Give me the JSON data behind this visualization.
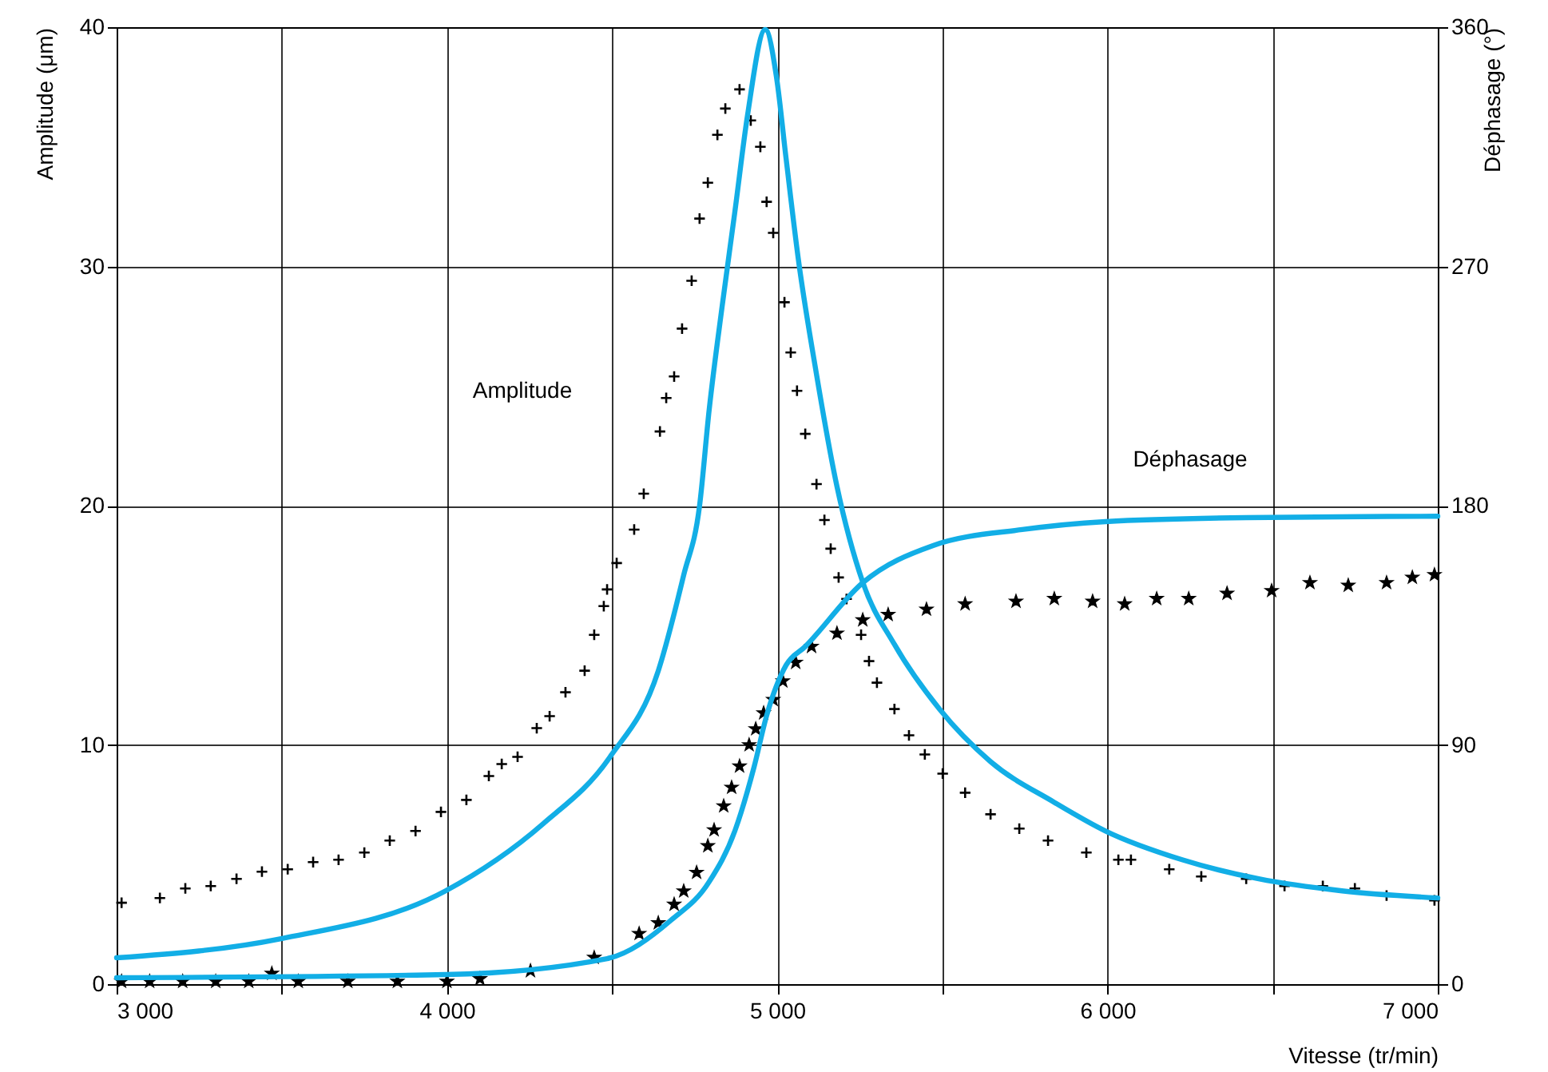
{
  "chart_data": {
    "type": "line",
    "xlabel": "Vitesse (tr/min)",
    "ylabel": "Amplitude (μm)",
    "y2label": "Déphasage (°)",
    "xlim": [
      3000,
      7000
    ],
    "xticks": [
      {
        "value": 3000,
        "label": "3 000"
      },
      {
        "value": 3500,
        "label": null
      },
      {
        "value": 4000,
        "label": "4 000"
      },
      {
        "value": 4500,
        "label": null
      },
      {
        "value": 5000,
        "label": "5 000"
      },
      {
        "value": 5500,
        "label": null
      },
      {
        "value": 6000,
        "label": "6 000"
      },
      {
        "value": 6500,
        "label": null
      },
      {
        "value": 7000,
        "label": "7 000"
      }
    ],
    "ylim": [
      0,
      40
    ],
    "yticks": [
      0,
      10,
      20,
      30,
      40
    ],
    "y2lim": [
      0,
      360
    ],
    "y2ticks": [
      0,
      90,
      180,
      270,
      360
    ],
    "grid": true,
    "annotations": [
      "Amplitude",
      "Déphasage"
    ],
    "series": [
      {
        "type": "scatter",
        "marker": "cross",
        "color": "#000000",
        "x": [
          3015,
          3131,
          3208,
          3285,
          3363,
          3440,
          3518,
          3595,
          3672,
          3750,
          3827,
          3905,
          3982,
          4059,
          4127,
          4166,
          4214,
          4272,
          4311,
          4359,
          4417,
          4446,
          4475,
          4485,
          4514,
          4567,
          4596,
          4645,
          4664,
          4688,
          4712,
          4741,
          4765,
          4790,
          4819,
          4843,
          4886,
          4920,
          4949,
          4968,
          4988,
          5022,
          5041,
          5060,
          5085,
          5119,
          5143,
          5162,
          5186,
          5210,
          5254,
          5278,
          5302,
          5355,
          5399,
          5447,
          5501,
          5569,
          5646,
          5733,
          5820,
          5936,
          6033,
          6071,
          6187,
          6284,
          6420,
          6536,
          6652,
          6749,
          6845,
          6990
        ],
        "values": [
          3.4,
          3.6,
          4.0,
          4.1,
          4.4,
          4.7,
          4.8,
          5.1,
          5.2,
          5.5,
          6.0,
          6.4,
          7.2,
          7.7,
          8.7,
          9.2,
          9.5,
          10.7,
          11.2,
          12.2,
          13.1,
          14.6,
          15.8,
          16.5,
          17.6,
          19.0,
          20.5,
          23.1,
          24.5,
          25.4,
          27.4,
          29.4,
          32.0,
          33.5,
          35.5,
          36.6,
          37.4,
          36.1,
          35.0,
          32.7,
          31.4,
          28.5,
          26.4,
          24.8,
          23.0,
          20.9,
          19.4,
          18.2,
          17.0,
          16.1,
          14.6,
          13.5,
          12.6,
          11.5,
          10.4,
          9.6,
          8.8,
          8.0,
          7.1,
          6.5,
          6.0,
          5.5,
          5.2,
          5.2,
          4.8,
          4.5,
          4.4,
          4.1,
          4.1,
          4.0,
          3.7,
          3.5
        ]
      },
      {
        "color": "#12aee6",
        "x": [
          3000,
          3498,
          3996,
          4291,
          4494,
          4640,
          4717,
          4765,
          4794,
          4833,
          4872,
          4910,
          4964,
          4998,
          5027,
          5065,
          5114,
          5181,
          5259,
          5355,
          5491,
          5646,
          5839,
          5994,
          6226,
          6458,
          6710,
          7000
        ],
        "values": [
          1.1,
          1.9,
          3.9,
          6.7,
          9.5,
          13.1,
          17.1,
          20.0,
          24.0,
          28.3,
          32.3,
          36.3,
          39.9,
          37.9,
          34.5,
          30.2,
          25.9,
          20.8,
          16.8,
          14.2,
          11.5,
          9.3,
          7.6,
          6.4,
          5.2,
          4.4,
          3.9,
          3.6
        ]
      },
      {
        "type": "scatter",
        "marker": "star",
        "color": "#000000",
        "axis": "y2",
        "x": [
          3015,
          3100,
          3200,
          3300,
          3400,
          3470,
          3550,
          3700,
          3850,
          4000,
          4100,
          4253,
          4446,
          4582,
          4640,
          4688,
          4717,
          4756,
          4790,
          4809,
          4838,
          4862,
          4886,
          4915,
          4935,
          4959,
          4988,
          5017,
          5056,
          5104,
          5181,
          5259,
          5336,
          5452,
          5569,
          5723,
          5839,
          5955,
          6052,
          6149,
          6246,
          6362,
          6497,
          6613,
          6729,
          6845,
          6923,
          6990
        ],
        "values": [
          1,
          1,
          1,
          1,
          1,
          4,
          1,
          1,
          1,
          1,
          2,
          5,
          10,
          19,
          23,
          30,
          35,
          42,
          52,
          58,
          67,
          74,
          82,
          90,
          96,
          102,
          107,
          114,
          121,
          127,
          132,
          137,
          139,
          141,
          143,
          144,
          145,
          144,
          143,
          145,
          145,
          147,
          148,
          151,
          150,
          151,
          153,
          154
        ]
      },
      {
        "color": "#12aee6",
        "axis": "y2",
        "x": [
          3000,
          3996,
          4485,
          4678,
          4794,
          4872,
          4930,
          4968,
          5027,
          5085,
          5259,
          5472,
          5742,
          5994,
          6420,
          7000
        ],
        "values": [
          2.4,
          3.6,
          9.6,
          24,
          38.5,
          57.7,
          81.7,
          101,
          120,
          127,
          151,
          165,
          171,
          174,
          175.5,
          176
        ]
      }
    ]
  }
}
